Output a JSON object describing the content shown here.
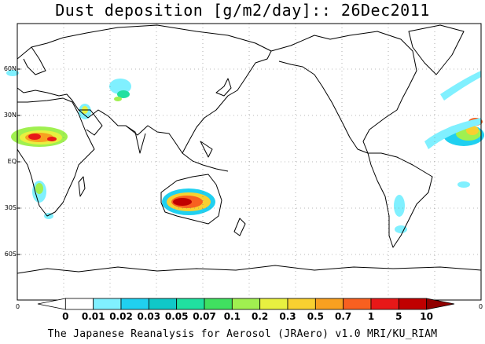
{
  "title": "Dust deposition [g/m2/day]:: 26Dec2011",
  "footer": "The Japanese Reanalysis for Aerosol (JRAero) v1.0 MRI/KU_RIAM",
  "latitude_labels": [
    "60N",
    "30N",
    "EQ",
    "30S",
    "60S"
  ],
  "corner_labels": {
    "bottom_left": "0",
    "bottom_right": "0"
  },
  "colorbar": {
    "tick_labels": [
      "0",
      "0.01",
      "0.02",
      "0.03",
      "0.05",
      "0.07",
      "0.1",
      "0.2",
      "0.3",
      "0.5",
      "0.7",
      "1",
      "5",
      "10"
    ],
    "colors": [
      "#ffffff",
      "#ffffff",
      "#80f0ff",
      "#20d0f0",
      "#10c8c8",
      "#20e0a0",
      "#40e060",
      "#a0f050",
      "#e8f040",
      "#f8d030",
      "#f8a020",
      "#f86020",
      "#e81818",
      "#c00000",
      "#900000"
    ]
  },
  "map_layers": {
    "Saharan dust": [
      {
        "lon": 5,
        "lat": 17,
        "level": 7
      }
    ],
    "Australian dust": [
      {
        "lon": 135,
        "lat": -26,
        "level": 10
      }
    ]
  }
}
